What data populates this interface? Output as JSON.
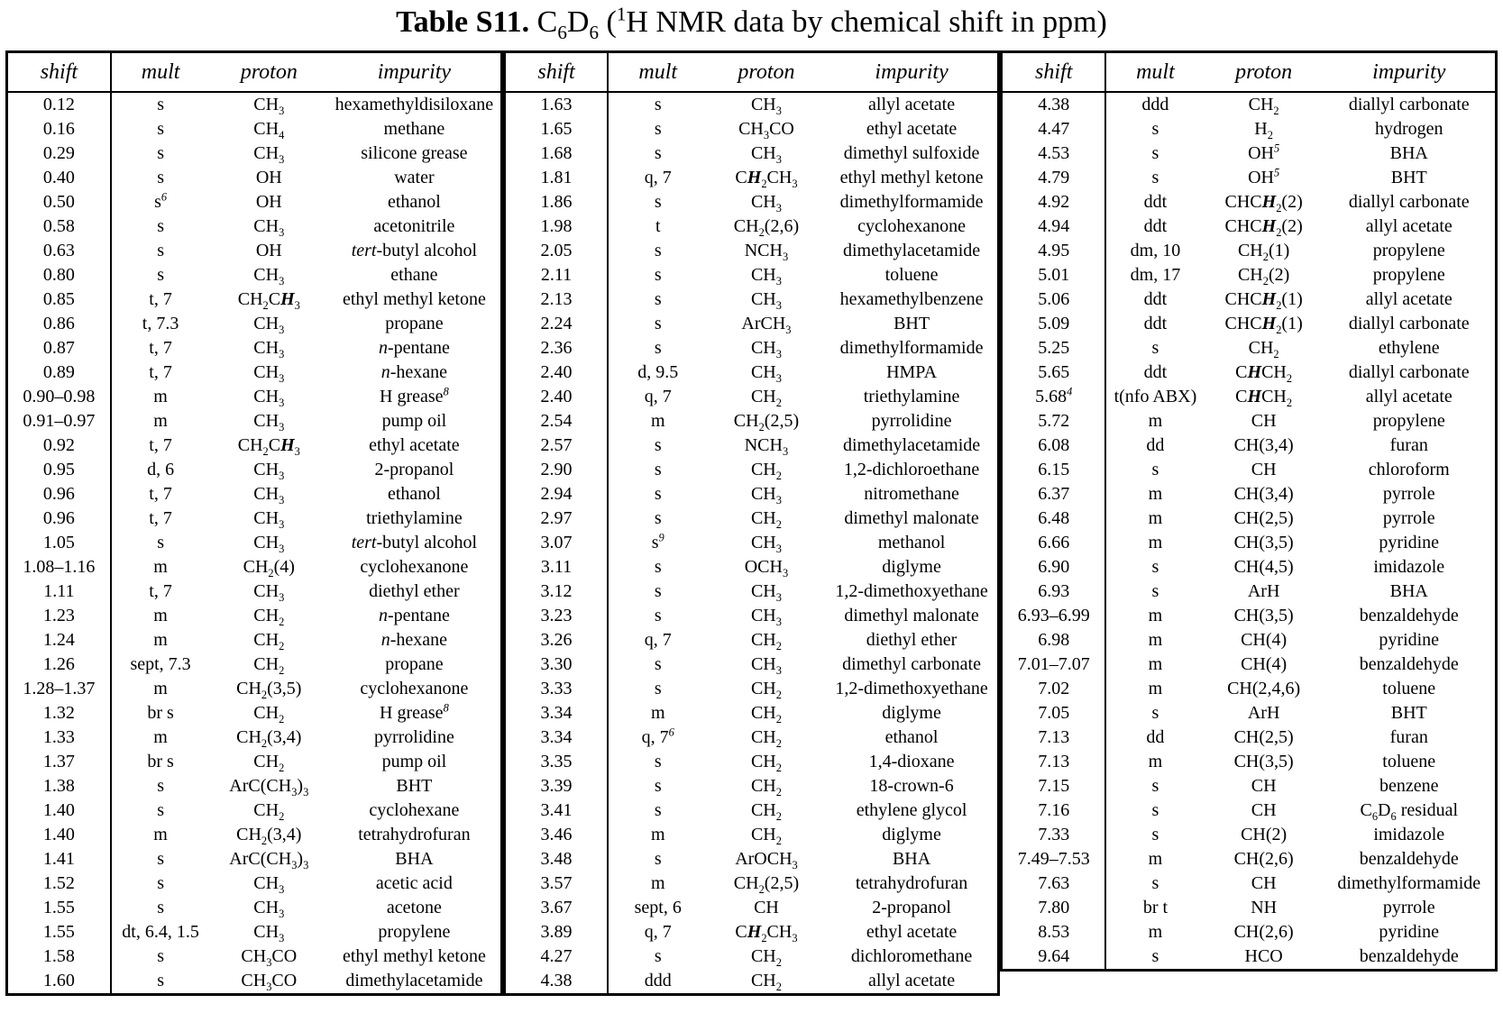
{
  "title": {
    "bold": "Table S11.",
    "rest": " C~6~D~6~ (^1^H NMR data by chemical shift in ppm)"
  },
  "table": {
    "headers": [
      "shift",
      "mult",
      "proton",
      "impurity"
    ],
    "groups": [
      {
        "rows": [
          [
            "0.12",
            "s",
            "CH~3~",
            "hexamethyldisiloxane"
          ],
          [
            "0.16",
            "s",
            "CH~4~",
            "methane"
          ],
          [
            "0.29",
            "s",
            "CH~3~",
            "silicone grease"
          ],
          [
            "0.40",
            "s",
            "OH",
            "water"
          ],
          [
            "0.50",
            "s^6^",
            "OH",
            "ethanol"
          ],
          [
            "0.58",
            "s",
            "CH~3~",
            "acetonitrile"
          ],
          [
            "0.63",
            "s",
            "OH",
            "*tert*-butyl alcohol"
          ],
          [
            "0.80",
            "s",
            "CH~3~",
            "ethane"
          ],
          [
            "0.85",
            "t, 7",
            "CH~2~C**H**~3~",
            "ethyl methyl ketone"
          ],
          [
            "0.86",
            "t, 7.3",
            "CH~3~",
            "propane"
          ],
          [
            "0.87",
            "t, 7",
            "CH~3~",
            "*n*-pentane"
          ],
          [
            "0.89",
            "t, 7",
            "CH~3~",
            "*n*-hexane"
          ],
          [
            "0.90–0.98",
            "m",
            "CH~3~",
            "H grease^8^"
          ],
          [
            "0.91–0.97",
            "m",
            "CH~3~",
            "pump oil"
          ],
          [
            "0.92",
            "t, 7",
            "CH~2~C**H**~3~",
            "ethyl acetate"
          ],
          [
            "0.95",
            "d, 6",
            "CH~3~",
            "2-propanol"
          ],
          [
            "0.96",
            "t, 7",
            "CH~3~",
            "ethanol"
          ],
          [
            "0.96",
            "t, 7",
            "CH~3~",
            "triethylamine"
          ],
          [
            "1.05",
            "s",
            "CH~3~",
            "*tert*-butyl alcohol"
          ],
          [
            "1.08–1.16",
            "m",
            "CH~2~(4)",
            "cyclohexanone"
          ],
          [
            "1.11",
            "t, 7",
            "CH~3~",
            "diethyl ether"
          ],
          [
            "1.23",
            "m",
            "CH~2~",
            "*n*-pentane"
          ],
          [
            "1.24",
            "m",
            "CH~2~",
            "*n*-hexane"
          ],
          [
            "1.26",
            "sept, 7.3",
            "CH~2~",
            "propane"
          ],
          [
            "1.28–1.37",
            "m",
            "CH~2~(3,5)",
            "cyclohexanone"
          ],
          [
            "1.32",
            "br s",
            "CH~2~",
            "H grease^8^"
          ],
          [
            "1.33",
            "m",
            "CH~2~(3,4)",
            "pyrrolidine"
          ],
          [
            "1.37",
            "br s",
            "CH~2~",
            "pump oil"
          ],
          [
            "1.38",
            "s",
            "ArC(CH~3~)~3~",
            "BHT"
          ],
          [
            "1.40",
            "s",
            "CH~2~",
            "cyclohexane"
          ],
          [
            "1.40",
            "m",
            "CH~2~(3,4)",
            "tetrahydrofuran"
          ],
          [
            "1.41",
            "s",
            "ArC(CH~3~)~3~",
            "BHA"
          ],
          [
            "1.52",
            "s",
            "CH~3~",
            "acetic acid"
          ],
          [
            "1.55",
            "s",
            "CH~3~",
            "acetone"
          ],
          [
            "1.55",
            "dt, 6.4, 1.5",
            "CH~3~",
            "propylene"
          ],
          [
            "1.58",
            "s",
            "CH~3~CO",
            "ethyl methyl ketone"
          ],
          [
            "1.60",
            "s",
            "CH~3~CO",
            "dimethylacetamide"
          ]
        ]
      },
      {
        "rows": [
          [
            "1.63",
            "s",
            "CH~3~",
            "allyl acetate"
          ],
          [
            "1.65",
            "s",
            "CH~3~CO",
            "ethyl acetate"
          ],
          [
            "1.68",
            "s",
            "CH~3~",
            "dimethyl sulfoxide"
          ],
          [
            "1.81",
            "q, 7",
            "C**H**~2~CH~3~",
            "ethyl methyl ketone"
          ],
          [
            "1.86",
            "s",
            "CH~3~",
            "dimethylformamide"
          ],
          [
            "1.98",
            "t",
            "CH~2~(2,6)",
            "cyclohexanone"
          ],
          [
            "2.05",
            "s",
            "NCH~3~",
            "dimethylacetamide"
          ],
          [
            "2.11",
            "s",
            "CH~3~",
            "toluene"
          ],
          [
            "2.13",
            "s",
            "CH~3~",
            "hexamethylbenzene"
          ],
          [
            "2.24",
            "s",
            "ArCH~3~",
            "BHT"
          ],
          [
            "2.36",
            "s",
            "CH~3~",
            "dimethylformamide"
          ],
          [
            "2.40",
            "d, 9.5",
            "CH~3~",
            "HMPA"
          ],
          [
            "2.40",
            "q, 7",
            "CH~2~",
            "triethylamine"
          ],
          [
            "2.54",
            "m",
            "CH~2~(2,5)",
            "pyrrolidine"
          ],
          [
            "2.57",
            "s",
            "NCH~3~",
            "dimethylacetamide"
          ],
          [
            "2.90",
            "s",
            "CH~2~",
            "1,2-dichloroethane"
          ],
          [
            "2.94",
            "s",
            "CH~3~",
            "nitromethane"
          ],
          [
            "2.97",
            "s",
            "CH~2~",
            "dimethyl malonate"
          ],
          [
            "3.07",
            "s^9^",
            "CH~3~",
            "methanol"
          ],
          [
            "3.11",
            "s",
            "OCH~3~",
            "diglyme"
          ],
          [
            "3.12",
            "s",
            "CH~3~",
            "1,2-dimethoxyethane"
          ],
          [
            "3.23",
            "s",
            "CH~3~",
            "dimethyl malonate"
          ],
          [
            "3.26",
            "q, 7",
            "CH~2~",
            "diethyl ether"
          ],
          [
            "3.30",
            "s",
            "CH~3~",
            "dimethyl carbonate"
          ],
          [
            "3.33",
            "s",
            "CH~2~",
            "1,2-dimethoxyethane"
          ],
          [
            "3.34",
            "m",
            "CH~2~",
            "diglyme"
          ],
          [
            "3.34",
            "q, 7^6^",
            "CH~2~",
            "ethanol"
          ],
          [
            "3.35",
            "s",
            "CH~2~",
            "1,4-dioxane"
          ],
          [
            "3.39",
            "s",
            "CH~2~",
            "18-crown-6"
          ],
          [
            "3.41",
            "s",
            "CH~2~",
            "ethylene glycol"
          ],
          [
            "3.46",
            "m",
            "CH~2~",
            "diglyme"
          ],
          [
            "3.48",
            "s",
            "ArOCH~3~",
            "BHA"
          ],
          [
            "3.57",
            "m",
            "CH~2~(2,5)",
            "tetrahydrofuran"
          ],
          [
            "3.67",
            "sept, 6",
            "CH",
            "2-propanol"
          ],
          [
            "3.89",
            "q, 7",
            "C**H**~2~CH~3~",
            "ethyl acetate"
          ],
          [
            "4.27",
            "s",
            "CH~2~",
            "dichloromethane"
          ],
          [
            "4.38",
            "ddd",
            "CH~2~",
            "allyl acetate"
          ]
        ]
      },
      {
        "rows": [
          [
            "4.38",
            "ddd",
            "CH~2~",
            "diallyl carbonate"
          ],
          [
            "4.47",
            "s",
            "H~2~",
            "hydrogen"
          ],
          [
            "4.53",
            "s",
            "OH^5^",
            "BHA"
          ],
          [
            "4.79",
            "s",
            "OH^5^",
            "BHT"
          ],
          [
            "4.92",
            "ddt",
            "CHC**H**~2~(2)",
            "diallyl carbonate"
          ],
          [
            "4.94",
            "ddt",
            "CHC**H**~2~(2)",
            "allyl acetate"
          ],
          [
            "4.95",
            "dm, 10",
            "CH~2~(1)",
            "propylene"
          ],
          [
            "5.01",
            "dm, 17",
            "CH~2~(2)",
            "propylene"
          ],
          [
            "5.06",
            "ddt",
            "CHC**H**~2~(1)",
            "allyl acetate"
          ],
          [
            "5.09",
            "ddt",
            "CHC**H**~2~(1)",
            "diallyl carbonate"
          ],
          [
            "5.25",
            "s",
            "CH~2~",
            "ethylene"
          ],
          [
            "5.65",
            "ddt",
            "C**H**CH~2~",
            "diallyl carbonate"
          ],
          [
            "5.68^4^",
            "t(nfo ABX)",
            "C**H**CH~2~",
            "allyl acetate"
          ],
          [
            "5.72",
            "m",
            "CH",
            "propylene"
          ],
          [
            "6.08",
            "dd",
            "CH(3,4)",
            "furan"
          ],
          [
            "6.15",
            "s",
            "CH",
            "chloroform"
          ],
          [
            "6.37",
            "m",
            "CH(3,4)",
            "pyrrole"
          ],
          [
            "6.48",
            "m",
            "CH(2,5)",
            "pyrrole"
          ],
          [
            "6.66",
            "m",
            "CH(3,5)",
            "pyridine"
          ],
          [
            "6.90",
            "s",
            "CH(4,5)",
            "imidazole"
          ],
          [
            "6.93",
            "s",
            "ArH",
            "BHA"
          ],
          [
            "6.93–6.99",
            "m",
            "CH(3,5)",
            "benzaldehyde"
          ],
          [
            "6.98",
            "m",
            "CH(4)",
            "pyridine"
          ],
          [
            "7.01–7.07",
            "m",
            "CH(4)",
            "benzaldehyde"
          ],
          [
            "7.02",
            "m",
            "CH(2,4,6)",
            "toluene"
          ],
          [
            "7.05",
            "s",
            "ArH",
            "BHT"
          ],
          [
            "7.13",
            "dd",
            "CH(2,5)",
            "furan"
          ],
          [
            "7.13",
            "m",
            "CH(3,5)",
            "toluene"
          ],
          [
            "7.15",
            "s",
            "CH",
            "benzene"
          ],
          [
            "7.16",
            "s",
            "CH",
            "C~6~D~6~ residual"
          ],
          [
            "7.33",
            "s",
            "CH(2)",
            "imidazole"
          ],
          [
            "7.49–7.53",
            "m",
            "CH(2,6)",
            "benzaldehyde"
          ],
          [
            "7.63",
            "s",
            "CH",
            "dimethylformamide"
          ],
          [
            "7.80",
            "br t",
            "NH",
            "pyrrole"
          ],
          [
            "8.53",
            "m",
            "CH(2,6)",
            "pyridine"
          ],
          [
            "9.64",
            "s",
            "HCO",
            "benzaldehyde"
          ]
        ]
      }
    ]
  }
}
